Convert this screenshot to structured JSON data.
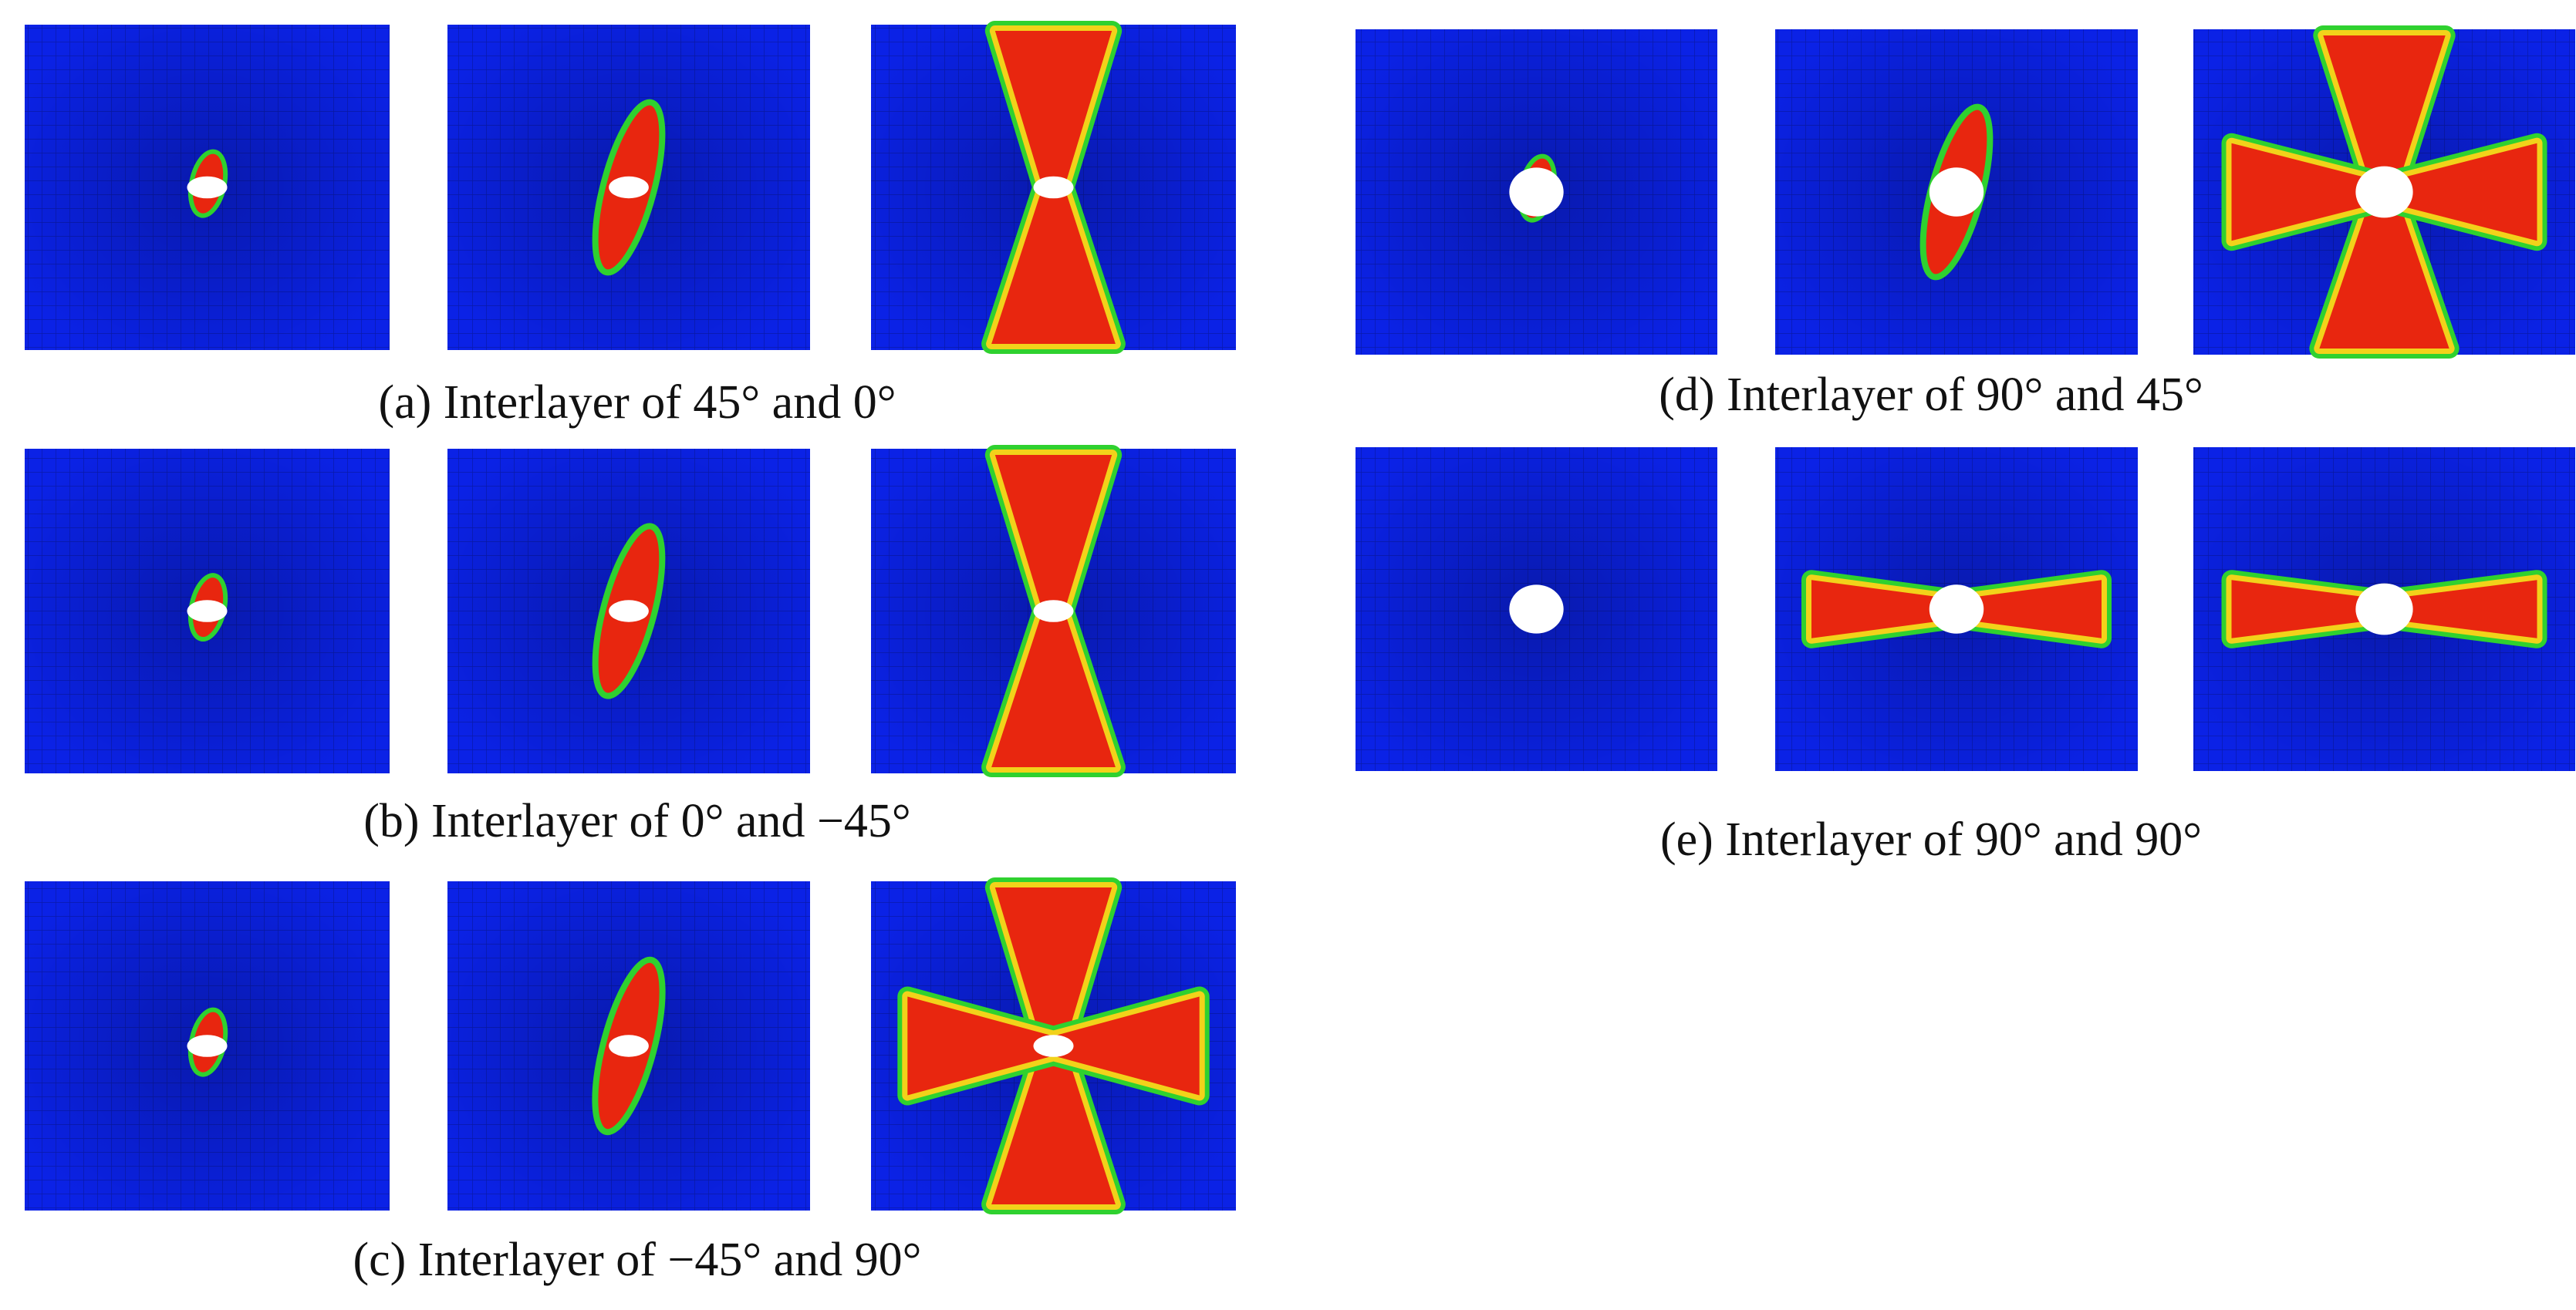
{
  "figure": {
    "panels": [
      {
        "caption": "(a) Interlayer of 45°  and 0°"
      },
      {
        "caption": "(b) Interlayer of 0°  and −45°"
      },
      {
        "caption": "(c) Interlayer of −45°  and 90°"
      },
      {
        "caption": "(d) Interlayer of 90°  and 45°"
      },
      {
        "caption": "(e) Interlayer of 90°  and 90°"
      }
    ]
  }
}
